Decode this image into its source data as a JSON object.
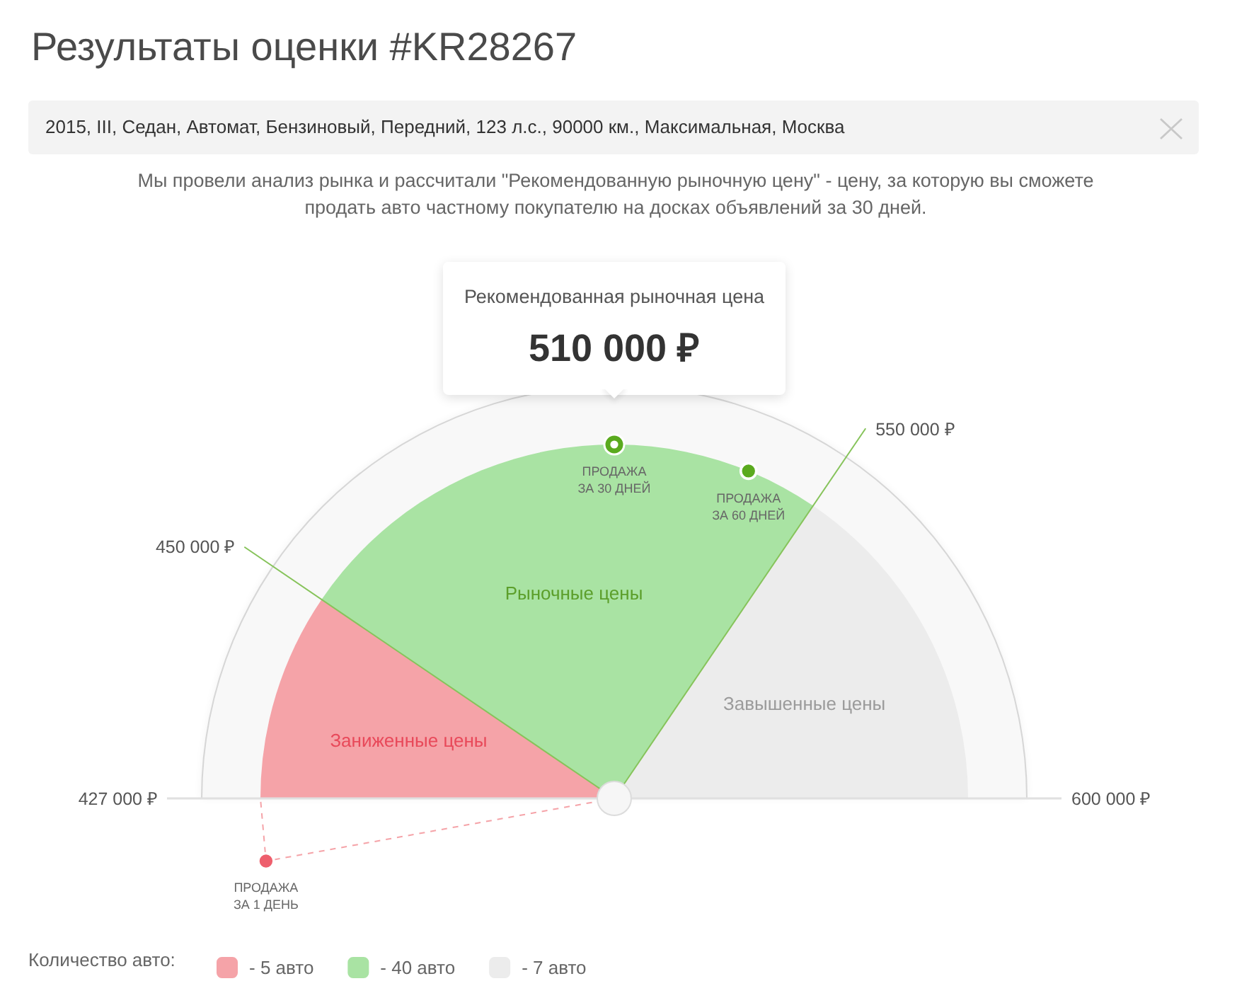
{
  "chart_data": {
    "type": "pie",
    "title": "Результаты оценки #KR28267",
    "subtitle": "Мы провели анализ рынка и рассчитали \"Рекомендованную рыночную цену\" - цену, за которую вы сможете продать авто частному покупателю на досках объявлений за 30 дней.",
    "categories": [
      "- 5 авто",
      "- 40 авто",
      "- 7 авто"
    ],
    "values": [
      19,
      50,
      31
    ],
    "colors": [
      "#f5a3a8",
      "#a9e3a3",
      "#ececec"
    ],
    "needle": "- 5 авто",
    "legend_title": "Количество авто:",
    "legend": "bottom left",
    "annotations": [
      "2015, III, Седан, Автомат, Бензиновый, Передний, 123 л.с., 90000 км., Максимальная, Москва",
      "Рекомендованная рыночная цена",
      "510 000 ₽",
      "427 000 ₽",
      "450 000 ₽",
      "550 000 ₽",
      "600 000 ₽",
      "Заниженные цены",
      "Рыночные цены",
      "Завышенные цены",
      "ПРОДАЖА ЗА 30 ДНЕЙ",
      "ПРОДАЖА ЗА 60 ДНЕЙ",
      "ПРОДАЖА ЗА 1 ДЕНЬ"
    ]
  }
}
